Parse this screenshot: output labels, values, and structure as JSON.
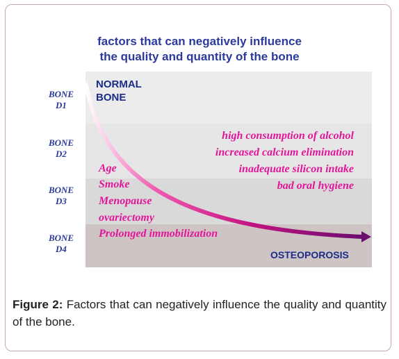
{
  "diagram": {
    "title_line1": "factors that can negatively influence",
    "title_line2": "the quality and quantity of the bone",
    "start_label_line1": "NORMAL",
    "start_label_line2": "BONE",
    "end_label": "OSTEOPOROSIS",
    "bone_levels": [
      {
        "line1": "BONE",
        "line2": "D1"
      },
      {
        "line1": "BONE",
        "line2": "D2"
      },
      {
        "line1": "BONE",
        "line2": "D3"
      },
      {
        "line1": "BONE",
        "line2": "D4"
      }
    ],
    "right_factors": [
      "high consumption of alcohol",
      "increased calcium elimination",
      "inadequate silicon intake",
      "bad oral hygiene"
    ],
    "left_factors": [
      "Age",
      "Smoke",
      "Menopause",
      "ovariectomy",
      "Prolonged immobilization"
    ],
    "colors": {
      "title": "#2b3a9b",
      "factor": "#e0169a",
      "curve_start": "#ffffff",
      "curve_end": "#6a0d6f"
    }
  },
  "caption": {
    "label": "Figure 2:",
    "text": " Factors that can negatively influence the quality and quantity of the bone."
  }
}
